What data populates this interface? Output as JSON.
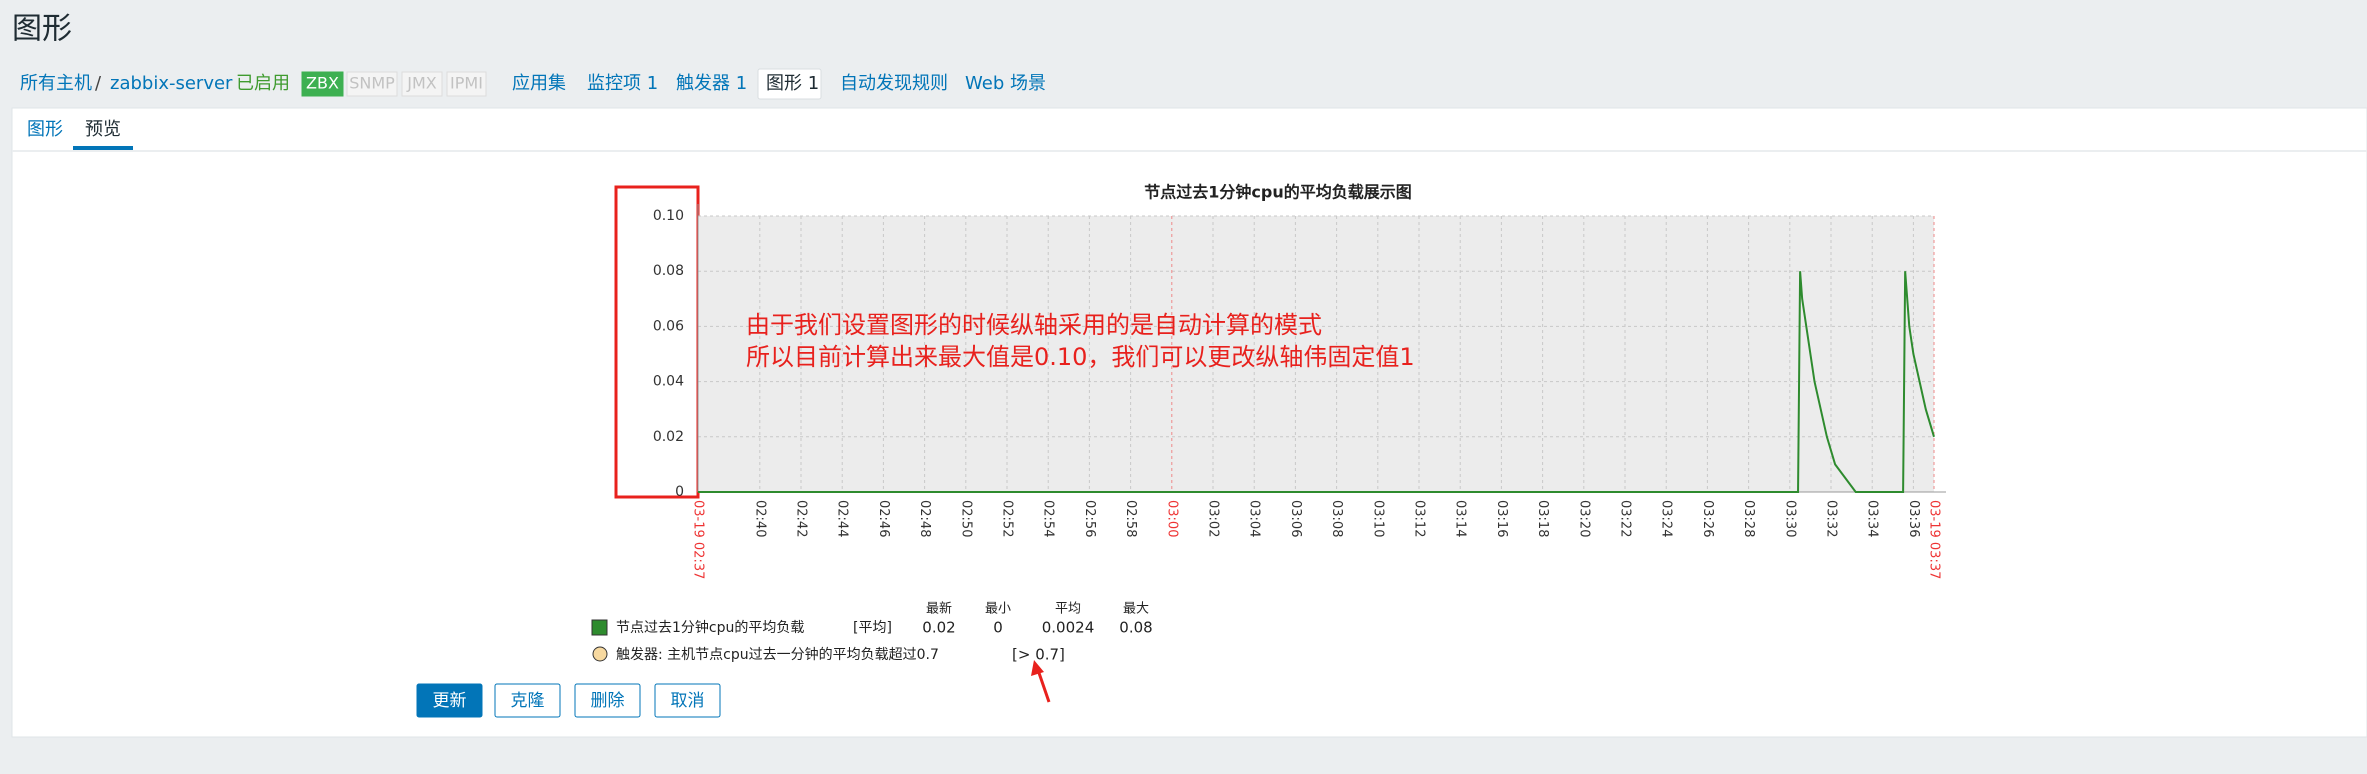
{
  "header": {
    "title": "图形"
  },
  "nav": {
    "host_list": "所有主机",
    "separator": "/",
    "host": "zabbix-server",
    "status": "已启用",
    "badges": [
      {
        "label": "ZBX",
        "active": true
      },
      {
        "label": "SNMP",
        "active": false
      },
      {
        "label": "JMX",
        "active": false
      },
      {
        "label": "IPMI",
        "active": false
      }
    ],
    "links": [
      "应用集",
      "监控项 1",
      "触发器 1",
      "图形 1",
      "自动发现规则",
      "Web 场景"
    ],
    "current_link": 3
  },
  "tabs": {
    "items": [
      "图形",
      "预览"
    ],
    "active": 1
  },
  "graph": {
    "title": "节点过去1分钟cpu的平均负载展示图",
    "ylim": [
      0,
      0.1
    ],
    "yticks": [
      0,
      0.02,
      0.04,
      0.06,
      0.08,
      {
        "value": 0.1,
        "label": "0.10"
      }
    ],
    "xlim": [
      0,
      60
    ],
    "x_labels": [
      "03-19 02:37",
      "02:40",
      "02:42",
      "02:44",
      "02:46",
      "02:48",
      "02:50",
      "02:52",
      "02:54",
      "02:56",
      "02:58",
      "03:00",
      "03:02",
      "03:04",
      "03:06",
      "03:08",
      "03:10",
      "03:12",
      "03:14",
      "03:16",
      "03:18",
      "03:20",
      "03:22",
      "03:24",
      "03:26",
      "03:28",
      "03:30",
      "03:32",
      "03:34",
      "03:36",
      "03-19 03:37"
    ],
    "highlight_labels": [
      0,
      11,
      30
    ],
    "series": {
      "name": "节点过去1分钟cpu的平均负载",
      "color": "#2e8b2e",
      "x": [
        0,
        53.4,
        53.5,
        53.6,
        53.8,
        54.0,
        54.2,
        54.5,
        54.8,
        55.2,
        56.2,
        58.5,
        58.6,
        58.8,
        59.0,
        59.3,
        59.6,
        60
      ],
      "values": [
        0,
        0,
        0.08,
        0.07,
        0.06,
        0.05,
        0.04,
        0.03,
        0.02,
        0.01,
        0,
        0,
        0.08,
        0.06,
        0.05,
        0.04,
        0.03,
        0.02
      ]
    },
    "legend": {
      "columns": [
        "最新",
        "最小",
        "平均",
        "最大"
      ],
      "function": "[平均]",
      "stats": [
        0.02,
        0,
        0.0024,
        0.08
      ],
      "trigger": {
        "label": "触发器: 主机节点cpu过去一分钟的平均负载超过0.7",
        "condition": "[> 0.7]",
        "color": "#f7d9a0"
      }
    }
  },
  "annotation": {
    "lines": [
      "由于我们设置图形的时候纵轴采用的是自动计算的模式",
      "所以目前计算出来最大值是0.10，我们可以更改纵轴伟固定值1"
    ]
  },
  "buttons": [
    "更新",
    "克隆",
    "删除",
    "取消"
  ]
}
